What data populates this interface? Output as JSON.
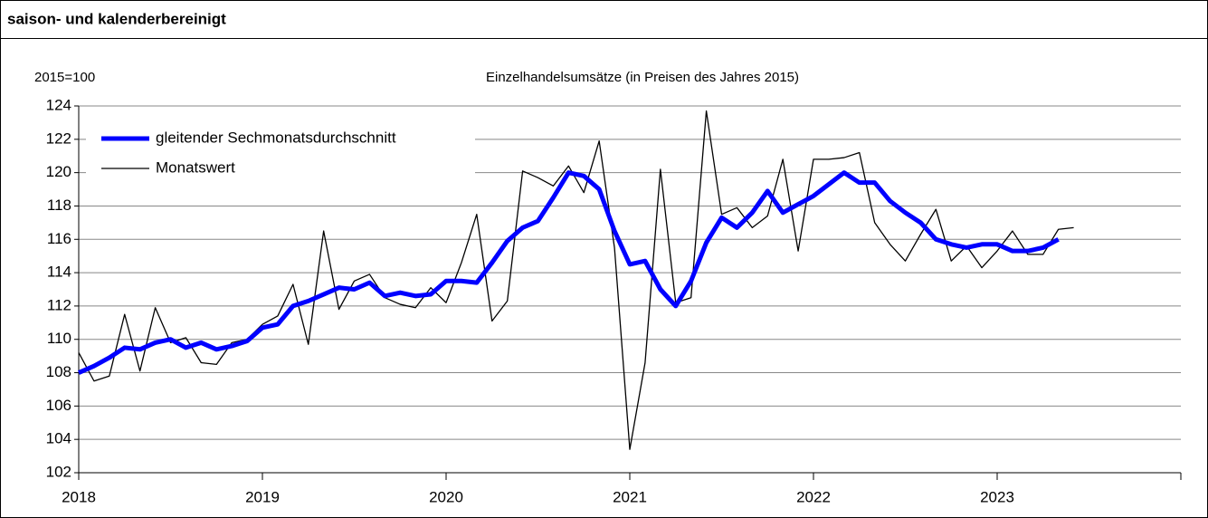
{
  "chart_data": {
    "type": "line",
    "heading": "saison- und kalenderbereinigt",
    "y_label": "2015=100",
    "title": "Einzelhandelsumsätze (in Preisen des Jahres 2015)",
    "categories": [
      "2018",
      null,
      null,
      null,
      null,
      null,
      null,
      null,
      null,
      null,
      null,
      null,
      "2019",
      null,
      null,
      null,
      null,
      null,
      null,
      null,
      null,
      null,
      null,
      null,
      "2020",
      null,
      null,
      null,
      null,
      null,
      null,
      null,
      null,
      null,
      null,
      null,
      "2021",
      null,
      null,
      null,
      null,
      null,
      null,
      null,
      null,
      null,
      null,
      null,
      "2022",
      null,
      null,
      null,
      null,
      null,
      null,
      null,
      null,
      null,
      null,
      null,
      "2023",
      null,
      null,
      null,
      null,
      null,
      null,
      null,
      null,
      null,
      null,
      null
    ],
    "series": [
      {
        "name": "gleitender Sechmonatsdurchschnitt",
        "color": "#0000ff",
        "width": 5,
        "values": [
          108.0,
          108.4,
          108.9,
          109.5,
          109.4,
          109.8,
          110.0,
          109.5,
          109.8,
          109.4,
          109.6,
          109.9,
          110.7,
          110.9,
          112.0,
          112.3,
          112.7,
          113.1,
          113.0,
          113.4,
          112.6,
          112.8,
          112.6,
          112.7,
          113.5,
          113.5,
          113.4,
          114.6,
          115.9,
          116.7,
          117.1,
          118.5,
          120.0,
          119.8,
          119.0,
          116.5,
          114.5,
          114.7,
          113.0,
          112.0,
          113.5,
          115.8,
          117.3,
          116.7,
          117.6,
          118.9,
          117.6,
          118.1,
          118.6,
          119.3,
          120.0,
          119.4,
          119.4,
          118.3,
          117.6,
          117.0,
          116.0,
          115.7,
          115.5,
          115.7,
          115.7,
          115.3,
          115.3,
          115.5,
          116.0,
          null,
          null,
          null,
          null,
          null,
          null,
          null
        ]
      },
      {
        "name": "Monatswert",
        "color": "#000000",
        "width": 1.3,
        "values": [
          109.2,
          107.5,
          107.8,
          111.5,
          108.1,
          111.9,
          109.8,
          110.1,
          108.6,
          108.5,
          109.8,
          110.0,
          110.9,
          111.4,
          113.3,
          109.7,
          116.5,
          111.8,
          113.5,
          113.9,
          112.5,
          112.1,
          111.9,
          113.1,
          112.2,
          114.6,
          117.5,
          111.1,
          112.3,
          120.1,
          119.7,
          119.2,
          120.4,
          118.8,
          121.9,
          115.5,
          103.4,
          108.6,
          120.2,
          112.2,
          112.5,
          123.7,
          117.5,
          117.9,
          116.7,
          117.4,
          120.8,
          115.3,
          120.8,
          120.8,
          120.9,
          121.2,
          117.0,
          115.7,
          114.7,
          116.3,
          117.8,
          114.7,
          115.6,
          114.3,
          115.3,
          116.5,
          115.1,
          115.1,
          116.6,
          116.7,
          null,
          null,
          null,
          null,
          null,
          null
        ]
      }
    ],
    "ylim": [
      102,
      124
    ],
    "yticks": [
      102,
      104,
      106,
      108,
      110,
      112,
      114,
      116,
      118,
      120,
      122,
      124
    ],
    "grid": true,
    "legend": "upper left"
  }
}
